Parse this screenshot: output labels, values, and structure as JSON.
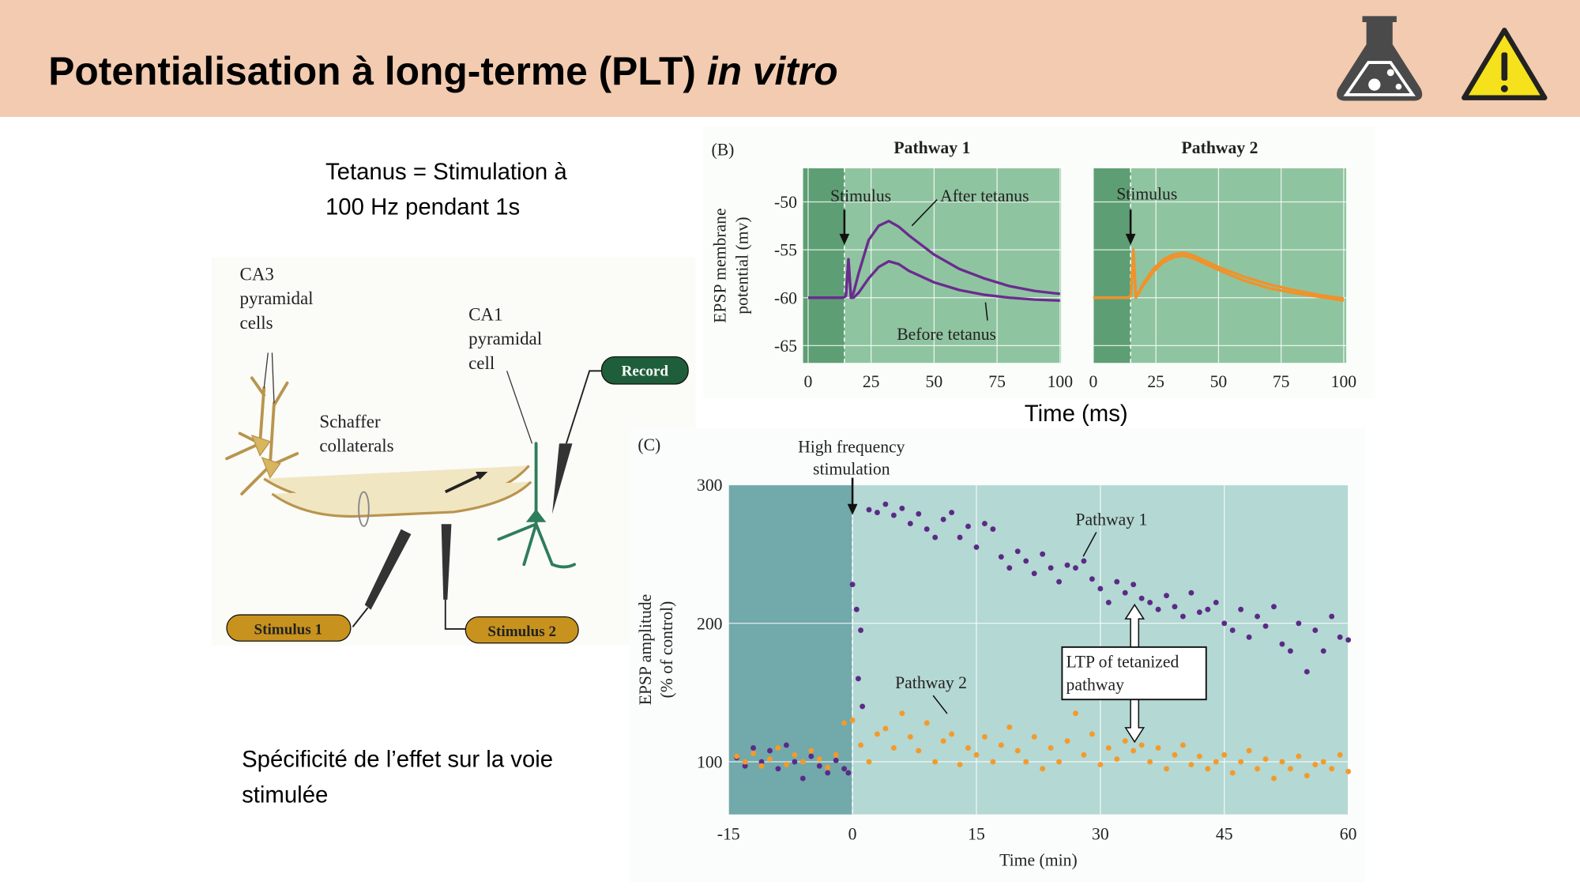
{
  "header": {
    "title": "Potentialisation à long-terme (PLT) ",
    "title_italic": "in vitro"
  },
  "text_blocks": {
    "tetanus": [
      "Tetanus = Stimulation à",
      "100 Hz pendant 1s"
    ],
    "specificity": [
      "Spécificité de l’effet sur la voie",
      "stimulée"
    ]
  },
  "diagram": {
    "ca3_label": [
      "CA3",
      "pyramidal",
      "cells"
    ],
    "schaffer_label": [
      "Schaffer",
      "collaterals"
    ],
    "ca1_label": [
      "CA1",
      "pyramidal",
      "cell"
    ],
    "record": "Record",
    "stimulus_1": "Stimulus 1",
    "stimulus_2": "Stimulus 2"
  },
  "figure_b": {
    "label": "(B)",
    "x_label": "Time (ms)"
  },
  "chart_data": [
    {
      "type": "line",
      "title": "Pathway 1",
      "y_label": [
        "EPSP membrane",
        "potential (mv)"
      ],
      "annotations": [
        "Stimulus"
      ],
      "xlim": [
        -2,
        100.4
      ],
      "ylim": [
        -66.8,
        -46.5
      ],
      "xticks": [
        0,
        25,
        50,
        75,
        100
      ],
      "yticks": [
        -50,
        -55,
        -60,
        -65
      ],
      "grid": true,
      "x": [
        0,
        10,
        14,
        15,
        16,
        17,
        18,
        20,
        24,
        28,
        32,
        36,
        40,
        50,
        60,
        70,
        80,
        90,
        100
      ],
      "series": [
        {
          "name": "After tetanus",
          "color": "#6a2c8e",
          "values": [
            -60,
            -60,
            -60,
            -59.8,
            -56,
            -60,
            -59.5,
            -57.5,
            -54,
            -52.5,
            -52,
            -52.6,
            -53.5,
            -55.5,
            -57,
            -58,
            -58.8,
            -59.3,
            -59.6
          ]
        },
        {
          "name": "Before tetanus",
          "color": "#6a2c8e",
          "values": [
            -60,
            -60,
            -60,
            -59.8,
            -56,
            -60,
            -60,
            -59.5,
            -58,
            -56.8,
            -56.2,
            -56.5,
            -57.2,
            -58.4,
            -59.2,
            -59.7,
            -60,
            -60.2,
            -60.3
          ]
        }
      ]
    },
    {
      "type": "line",
      "title": "Pathway 2",
      "annotations": [
        "Stimulus"
      ],
      "xlim": [
        0,
        101
      ],
      "ylim": [
        -66.8,
        -46.5
      ],
      "xticks": [
        0,
        25,
        50,
        75,
        100
      ],
      "yticks": [
        -50,
        -55,
        -60,
        -65
      ],
      "grid": true,
      "x": [
        0,
        10,
        14,
        15,
        16,
        17,
        18,
        20,
        24,
        28,
        32,
        36,
        40,
        50,
        60,
        70,
        80,
        90,
        100
      ],
      "series": [
        {
          "color": "#f0922b",
          "values": [
            -60,
            -60,
            -60,
            -59.8,
            -55,
            -60,
            -59.5,
            -58.5,
            -57,
            -56,
            -55.5,
            -55.3,
            -55.6,
            -56.8,
            -57.8,
            -58.6,
            -59.2,
            -59.7,
            -60.1
          ]
        },
        {
          "color": "#f0922b",
          "values": [
            -60,
            -60,
            -60,
            -59.8,
            -55.2,
            -60,
            -59.6,
            -58.7,
            -57.3,
            -56.3,
            -55.8,
            -55.6,
            -55.9,
            -57.1,
            -58.2,
            -59,
            -59.5,
            -59.9,
            -60.3
          ]
        }
      ]
    },
    {
      "type": "scatter",
      "label": "(C)",
      "x_label": "Time (min)",
      "y_label": [
        "EPSP amplitude",
        "(% of control)"
      ],
      "annotations": [
        "High frequency",
        "stimulation"
      ],
      "callout": [
        "LTP of tetanized",
        "pathway"
      ],
      "xlim": [
        -15,
        60
      ],
      "ylim": [
        62,
        300
      ],
      "xticks": [
        -15,
        0,
        15,
        30,
        45,
        60
      ],
      "yticks": [
        100,
        200,
        300
      ],
      "grid": true,
      "series": [
        {
          "name": "Pathway 1",
          "color": "#5b2a86",
          "x": [
            -14,
            -13,
            -12,
            -11,
            -10,
            -9,
            -8,
            -7,
            -6,
            -5,
            -4,
            -3,
            -2,
            -1,
            -0.5,
            0,
            0.5,
            0.7,
            1,
            1.2,
            2,
            3,
            4,
            5,
            6,
            7,
            8,
            9,
            10,
            11,
            12,
            13,
            14,
            15,
            16,
            17,
            18,
            19,
            20,
            21,
            22,
            23,
            24,
            25,
            26,
            27,
            28,
            29,
            30,
            31,
            32,
            33,
            34,
            35,
            36,
            37,
            38,
            39,
            40,
            41,
            42,
            43,
            44,
            45,
            46,
            47,
            48,
            49,
            50,
            51,
            52,
            53,
            54,
            55,
            56,
            57,
            58,
            59,
            60
          ],
          "values": [
            103,
            97,
            110,
            100,
            108,
            95,
            112,
            100,
            88,
            104,
            97,
            92,
            101,
            95,
            92,
            228,
            210,
            160,
            195,
            140,
            282,
            280,
            286,
            278,
            283,
            272,
            279,
            268,
            262,
            275,
            280,
            262,
            270,
            255,
            272,
            268,
            248,
            240,
            252,
            245,
            236,
            250,
            240,
            230,
            242,
            240,
            245,
            232,
            225,
            215,
            230,
            222,
            228,
            218,
            215,
            210,
            220,
            212,
            205,
            222,
            208,
            210,
            215,
            200,
            195,
            210,
            190,
            205,
            198,
            212,
            185,
            180,
            200,
            165,
            195,
            180,
            205,
            190,
            188
          ]
        },
        {
          "name": "Pathway 2",
          "color": "#f39a2b",
          "x": [
            -14,
            -13,
            -12,
            -11,
            -10,
            -9,
            -8,
            -7,
            -6,
            -5,
            -4,
            -3,
            -2,
            -1,
            0,
            1,
            2,
            3,
            4,
            5,
            6,
            7,
            8,
            9,
            10,
            11,
            12,
            13,
            14,
            15,
            16,
            17,
            18,
            19,
            20,
            21,
            22,
            23,
            24,
            25,
            26,
            27,
            28,
            29,
            30,
            31,
            32,
            33,
            34,
            35,
            36,
            37,
            38,
            39,
            40,
            41,
            42,
            43,
            44,
            45,
            46,
            47,
            48,
            49,
            50,
            51,
            52,
            53,
            54,
            55,
            56,
            57,
            58,
            59,
            60
          ],
          "values": [
            104,
            100,
            106,
            97,
            102,
            110,
            98,
            105,
            100,
            108,
            102,
            96,
            105,
            128,
            130,
            112,
            100,
            120,
            124,
            110,
            135,
            118,
            108,
            128,
            100,
            115,
            120,
            98,
            110,
            105,
            118,
            100,
            112,
            125,
            108,
            100,
            118,
            95,
            110,
            100,
            115,
            135,
            105,
            120,
            98,
            110,
            102,
            115,
            108,
            112,
            100,
            110,
            95,
            105,
            112,
            98,
            104,
            95,
            100,
            105,
            92,
            100,
            108,
            95,
            102,
            88,
            100,
            95,
            104,
            90,
            98,
            100,
            95,
            105,
            93
          ]
        }
      ]
    }
  ]
}
